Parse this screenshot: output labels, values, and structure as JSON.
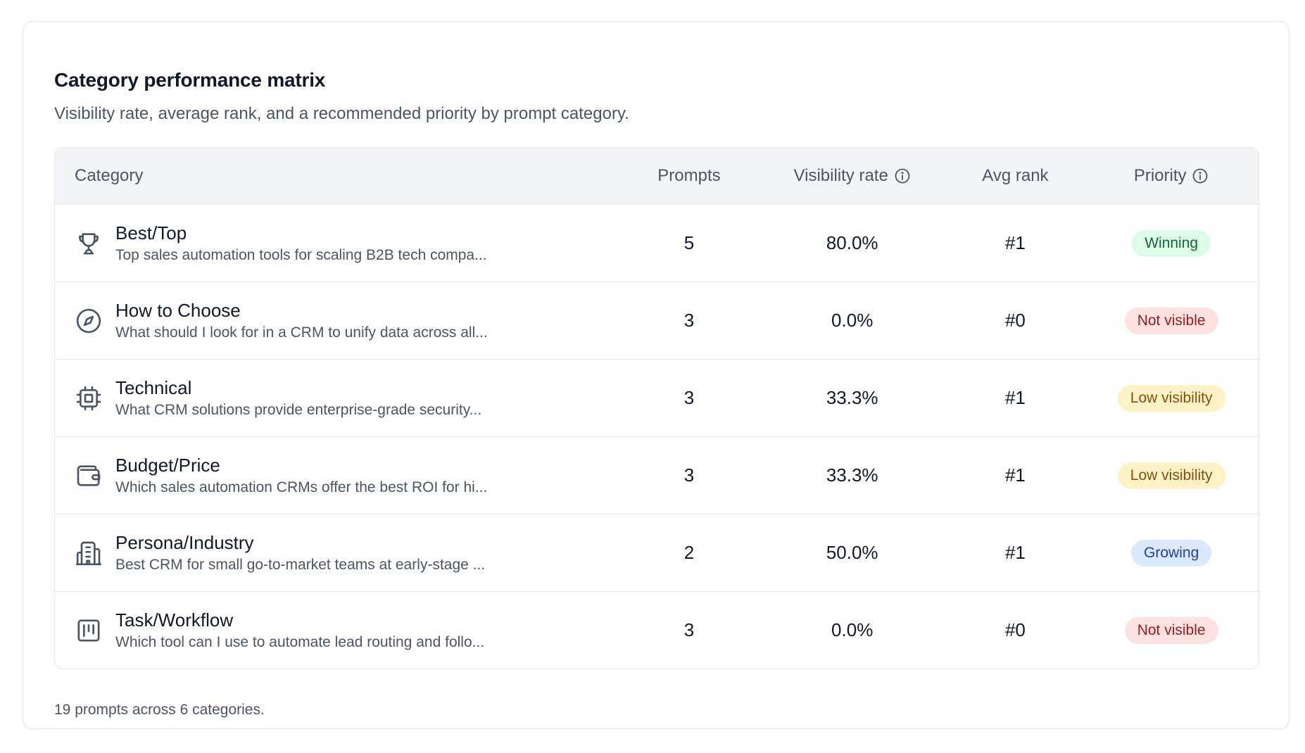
{
  "card": {
    "title": "Category performance matrix",
    "subtitle": "Visibility rate, average rank, and a recommended priority by prompt category."
  },
  "table": {
    "headers": {
      "category": "Category",
      "prompts": "Prompts",
      "visibility_rate": "Visibility rate",
      "avg_rank": "Avg rank",
      "priority": "Priority"
    },
    "rows": [
      {
        "icon": "trophy-icon",
        "category": "Best/Top",
        "description": "Top sales automation tools for scaling B2B tech compa...",
        "prompts": "5",
        "visibility_rate": "80.0%",
        "avg_rank": "#1",
        "priority": "Winning",
        "priority_bg": "#dcfce7",
        "priority_fg": "#166534"
      },
      {
        "icon": "compass-icon",
        "category": "How to Choose",
        "description": "What should I look for in a CRM to unify data across all...",
        "prompts": "3",
        "visibility_rate": "0.0%",
        "avg_rank": "#0",
        "priority": "Not visible",
        "priority_bg": "#fee2e2",
        "priority_fg": "#991b1b"
      },
      {
        "icon": "cpu-icon",
        "category": "Technical",
        "description": "What CRM solutions provide enterprise-grade security...",
        "prompts": "3",
        "visibility_rate": "33.3%",
        "avg_rank": "#1",
        "priority": "Low visibility",
        "priority_bg": "#fef3c7",
        "priority_fg": "#854d0e"
      },
      {
        "icon": "wallet-icon",
        "category": "Budget/Price",
        "description": "Which sales automation CRMs offer the best ROI for hi...",
        "prompts": "3",
        "visibility_rate": "33.3%",
        "avg_rank": "#1",
        "priority": "Low visibility",
        "priority_bg": "#fef3c7",
        "priority_fg": "#854d0e"
      },
      {
        "icon": "building-icon",
        "category": "Persona/Industry",
        "description": "Best CRM for small go-to-market teams at early-stage ...",
        "prompts": "2",
        "visibility_rate": "50.0%",
        "avg_rank": "#1",
        "priority": "Growing",
        "priority_bg": "#dbeafe",
        "priority_fg": "#1e40af"
      },
      {
        "icon": "kanban-icon",
        "category": "Task/Workflow",
        "description": "Which tool can I use to automate lead routing and follo...",
        "prompts": "3",
        "visibility_rate": "0.0%",
        "avg_rank": "#0",
        "priority": "Not visible",
        "priority_bg": "#fee2e2",
        "priority_fg": "#991b1b"
      }
    ]
  },
  "footer": {
    "note": "19 prompts across 6 categories."
  }
}
